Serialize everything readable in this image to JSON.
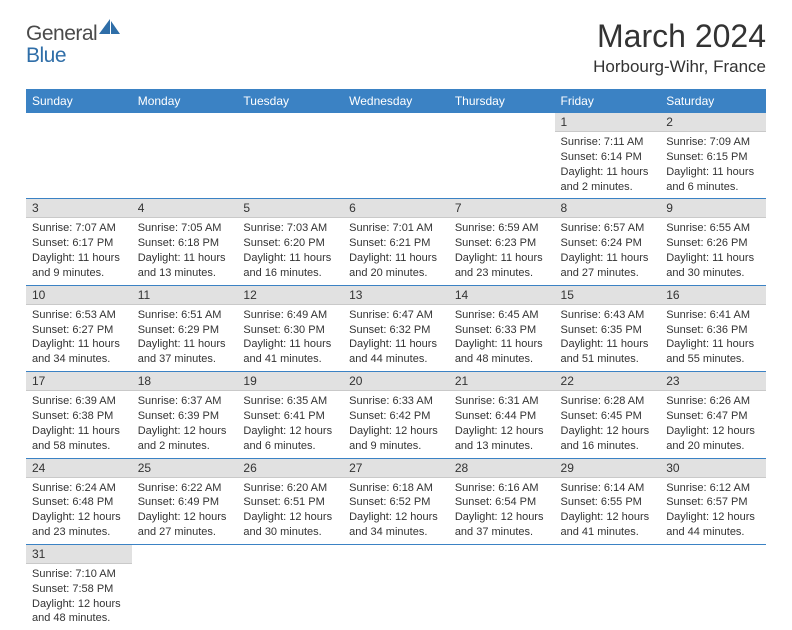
{
  "logo": {
    "part1": "General",
    "part2": "Blue"
  },
  "title": "March 2024",
  "location": "Horbourg-Wihr, France",
  "header_color": "#3b82c4",
  "daynum_bg": "#e1e1e1",
  "day_headers": [
    "Sunday",
    "Monday",
    "Tuesday",
    "Wednesday",
    "Thursday",
    "Friday",
    "Saturday"
  ],
  "weeks": [
    [
      null,
      null,
      null,
      null,
      null,
      {
        "n": "1",
        "sunrise": "7:11 AM",
        "sunset": "6:14 PM",
        "daylight": "11 hours and 2 minutes."
      },
      {
        "n": "2",
        "sunrise": "7:09 AM",
        "sunset": "6:15 PM",
        "daylight": "11 hours and 6 minutes."
      }
    ],
    [
      {
        "n": "3",
        "sunrise": "7:07 AM",
        "sunset": "6:17 PM",
        "daylight": "11 hours and 9 minutes."
      },
      {
        "n": "4",
        "sunrise": "7:05 AM",
        "sunset": "6:18 PM",
        "daylight": "11 hours and 13 minutes."
      },
      {
        "n": "5",
        "sunrise": "7:03 AM",
        "sunset": "6:20 PM",
        "daylight": "11 hours and 16 minutes."
      },
      {
        "n": "6",
        "sunrise": "7:01 AM",
        "sunset": "6:21 PM",
        "daylight": "11 hours and 20 minutes."
      },
      {
        "n": "7",
        "sunrise": "6:59 AM",
        "sunset": "6:23 PM",
        "daylight": "11 hours and 23 minutes."
      },
      {
        "n": "8",
        "sunrise": "6:57 AM",
        "sunset": "6:24 PM",
        "daylight": "11 hours and 27 minutes."
      },
      {
        "n": "9",
        "sunrise": "6:55 AM",
        "sunset": "6:26 PM",
        "daylight": "11 hours and 30 minutes."
      }
    ],
    [
      {
        "n": "10",
        "sunrise": "6:53 AM",
        "sunset": "6:27 PM",
        "daylight": "11 hours and 34 minutes."
      },
      {
        "n": "11",
        "sunrise": "6:51 AM",
        "sunset": "6:29 PM",
        "daylight": "11 hours and 37 minutes."
      },
      {
        "n": "12",
        "sunrise": "6:49 AM",
        "sunset": "6:30 PM",
        "daylight": "11 hours and 41 minutes."
      },
      {
        "n": "13",
        "sunrise": "6:47 AM",
        "sunset": "6:32 PM",
        "daylight": "11 hours and 44 minutes."
      },
      {
        "n": "14",
        "sunrise": "6:45 AM",
        "sunset": "6:33 PM",
        "daylight": "11 hours and 48 minutes."
      },
      {
        "n": "15",
        "sunrise": "6:43 AM",
        "sunset": "6:35 PM",
        "daylight": "11 hours and 51 minutes."
      },
      {
        "n": "16",
        "sunrise": "6:41 AM",
        "sunset": "6:36 PM",
        "daylight": "11 hours and 55 minutes."
      }
    ],
    [
      {
        "n": "17",
        "sunrise": "6:39 AM",
        "sunset": "6:38 PM",
        "daylight": "11 hours and 58 minutes."
      },
      {
        "n": "18",
        "sunrise": "6:37 AM",
        "sunset": "6:39 PM",
        "daylight": "12 hours and 2 minutes."
      },
      {
        "n": "19",
        "sunrise": "6:35 AM",
        "sunset": "6:41 PM",
        "daylight": "12 hours and 6 minutes."
      },
      {
        "n": "20",
        "sunrise": "6:33 AM",
        "sunset": "6:42 PM",
        "daylight": "12 hours and 9 minutes."
      },
      {
        "n": "21",
        "sunrise": "6:31 AM",
        "sunset": "6:44 PM",
        "daylight": "12 hours and 13 minutes."
      },
      {
        "n": "22",
        "sunrise": "6:28 AM",
        "sunset": "6:45 PM",
        "daylight": "12 hours and 16 minutes."
      },
      {
        "n": "23",
        "sunrise": "6:26 AM",
        "sunset": "6:47 PM",
        "daylight": "12 hours and 20 minutes."
      }
    ],
    [
      {
        "n": "24",
        "sunrise": "6:24 AM",
        "sunset": "6:48 PM",
        "daylight": "12 hours and 23 minutes."
      },
      {
        "n": "25",
        "sunrise": "6:22 AM",
        "sunset": "6:49 PM",
        "daylight": "12 hours and 27 minutes."
      },
      {
        "n": "26",
        "sunrise": "6:20 AM",
        "sunset": "6:51 PM",
        "daylight": "12 hours and 30 minutes."
      },
      {
        "n": "27",
        "sunrise": "6:18 AM",
        "sunset": "6:52 PM",
        "daylight": "12 hours and 34 minutes."
      },
      {
        "n": "28",
        "sunrise": "6:16 AM",
        "sunset": "6:54 PM",
        "daylight": "12 hours and 37 minutes."
      },
      {
        "n": "29",
        "sunrise": "6:14 AM",
        "sunset": "6:55 PM",
        "daylight": "12 hours and 41 minutes."
      },
      {
        "n": "30",
        "sunrise": "6:12 AM",
        "sunset": "6:57 PM",
        "daylight": "12 hours and 44 minutes."
      }
    ],
    [
      {
        "n": "31",
        "sunrise": "7:10 AM",
        "sunset": "7:58 PM",
        "daylight": "12 hours and 48 minutes."
      },
      null,
      null,
      null,
      null,
      null,
      null
    ]
  ]
}
